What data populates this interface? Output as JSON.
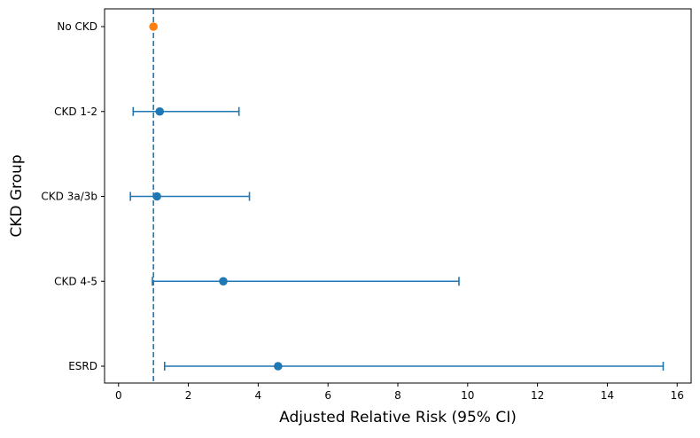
{
  "chart_data": {
    "type": "scatter",
    "subtype": "forest-plot",
    "title": "",
    "xlabel": "Adjusted Relative Risk (95% CI)",
    "ylabel": "CKD Group",
    "xlim": [
      -0.4,
      16.4
    ],
    "xticks": [
      0,
      2,
      4,
      6,
      8,
      10,
      12,
      14,
      16
    ],
    "grid": false,
    "reference_line": {
      "x": 1.0,
      "style": "dashed",
      "color": "#1f77b4"
    },
    "reference_group": {
      "label": "No CKD",
      "estimate": 1.0,
      "color": "#ff7f0e"
    },
    "categories": [
      "No CKD",
      "CKD 1-2",
      "CKD 3a/3b",
      "CKD 4-5",
      "ESRD"
    ],
    "estimates": [
      1.0,
      1.18,
      1.1,
      3.0,
      4.57
    ],
    "ci_lower": [
      null,
      0.42,
      0.34,
      0.97,
      1.32
    ],
    "ci_upper": [
      null,
      3.45,
      3.75,
      9.75,
      15.6
    ],
    "series_color": "#1f77b4"
  }
}
